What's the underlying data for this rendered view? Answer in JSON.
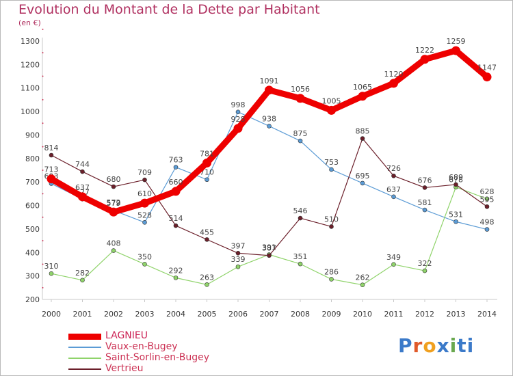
{
  "chart_data": {
    "type": "line",
    "title": "Evolution du Montant de la Dette par Habitant",
    "unit_label": "(en €)",
    "x": [
      "2000",
      "2001",
      "2002",
      "2003",
      "2004",
      "2005",
      "2006",
      "2007",
      "2008",
      "2009",
      "2010",
      "2011",
      "2012",
      "2013",
      "2014"
    ],
    "ylim": [
      200,
      1300
    ],
    "yticks": [
      200,
      300,
      400,
      500,
      600,
      700,
      800,
      900,
      1000,
      1100,
      1200,
      1300
    ],
    "grid": false,
    "legend_position": "bottom-left",
    "series": [
      {
        "name": "LAGNIEU",
        "color": "#ee0000",
        "values": [
          713,
          637,
          572,
          610,
          660,
          781,
          928,
          1091,
          1056,
          1005,
          1065,
          1120,
          1222,
          1259,
          1147
        ]
      },
      {
        "name": "Vaux-en-Bugey",
        "color": "#5b9bd5",
        "values": [
          693,
          627,
          579,
          528,
          763,
          710,
          998,
          938,
          875,
          753,
          695,
          637,
          581,
          531,
          498
        ]
      },
      {
        "name": "Saint-Sorlin-en-Bugey",
        "color": "#8fd36a",
        "values": [
          310,
          282,
          408,
          350,
          292,
          263,
          339,
          391,
          351,
          286,
          262,
          349,
          322,
          678,
          628
        ]
      },
      {
        "name": "Vertrieu",
        "color": "#6b1f2a",
        "values": [
          814,
          744,
          680,
          709,
          514,
          455,
          397,
          387,
          546,
          510,
          885,
          726,
          676,
          689,
          595
        ]
      }
    ]
  },
  "logo_text": [
    "P",
    "r",
    "o",
    "x",
    "i",
    "t",
    "i"
  ]
}
